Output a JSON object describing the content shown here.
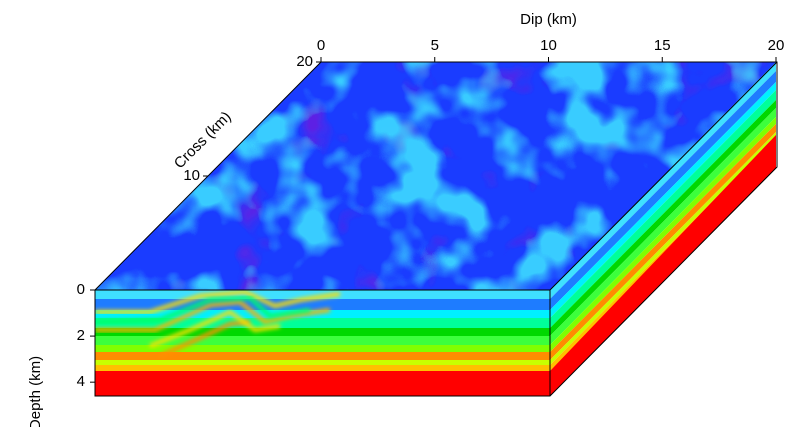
{
  "chart_data": {
    "type": "cube3d",
    "xlabel": "Dip (km)",
    "ylabel": "Cross (km)",
    "zlabel": "Depth (km)",
    "xlim": [
      0,
      20
    ],
    "xticks": [
      0,
      5,
      10,
      15,
      20
    ],
    "ylim": [
      0,
      20
    ],
    "yticks": [
      10,
      20
    ],
    "zlim": [
      0,
      4.6
    ],
    "zticks": [
      0,
      2,
      4
    ]
  }
}
